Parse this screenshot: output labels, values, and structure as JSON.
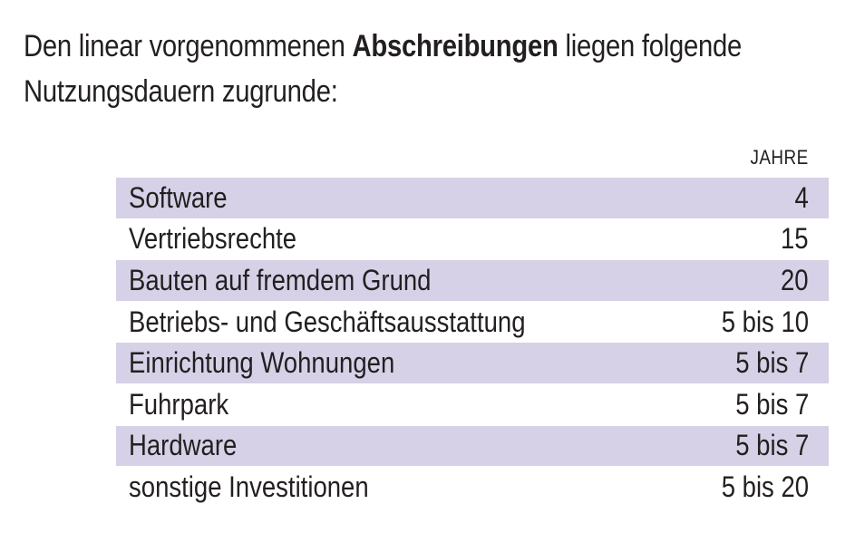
{
  "intro": {
    "text_before": "Den linear vorgenommenen ",
    "text_bold": "Abschreibungen",
    "text_after_line1": " liegen folgende",
    "text_line2": "Nutzungsdauern zugrunde:"
  },
  "table": {
    "column_header": "JAHRE",
    "rows": [
      {
        "label": "Software",
        "value": "4"
      },
      {
        "label": "Vertriebsrechte",
        "value": "15"
      },
      {
        "label": "Bauten auf fremdem Grund",
        "value": "20"
      },
      {
        "label": "Betriebs- und Geschäftsausstattung",
        "value": "5 bis 10"
      },
      {
        "label": "Einrichtung Wohnungen",
        "value": "5 bis 7"
      },
      {
        "label": "Fuhrpark",
        "value": "5 bis 7"
      },
      {
        "label": "Hardware",
        "value": "5 bis 7"
      },
      {
        "label": "sonstige Investitionen",
        "value": "5 bis 20"
      }
    ],
    "row_shade_color": "#d6d1e6"
  }
}
